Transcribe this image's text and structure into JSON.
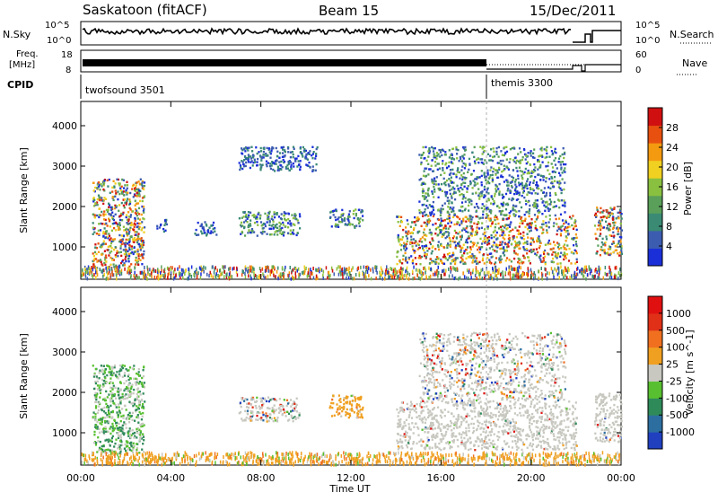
{
  "header": {
    "station": "Saskatoon (fitACF)",
    "beam": "Beam 15",
    "date": "15/Dec/2011"
  },
  "status_panel": {
    "nsky_label": "N.Sky",
    "nsky_ticks": [
      "10^5",
      "10^0"
    ],
    "nsearch_label": "N.Search",
    "nsearch_ticks": [
      "10^5",
      "10^0"
    ],
    "freq_label_1": "Freq.",
    "freq_label_2": "[MHz]",
    "freq_ticks": [
      "18",
      "8"
    ],
    "nave_label": "Nave",
    "nave_ticks": [
      "60",
      "0"
    ],
    "cpid_label": "CPID",
    "programs": [
      {
        "name": "twofsound 3501",
        "start_hour": 0
      },
      {
        "name": "themis 3300",
        "start_hour": 18
      }
    ]
  },
  "chart_data": [
    {
      "type": "heatmap",
      "title": "",
      "ylabel": "Slant Range [km]",
      "y_ticks": [
        "1000",
        "2000",
        "3000",
        "4000"
      ],
      "ylim": [
        200,
        4600
      ],
      "xlim": [
        0,
        24
      ],
      "colorbar": {
        "label": "Power [dB]",
        "ticks": [
          "4",
          "8",
          "12",
          "16",
          "20",
          "24",
          "28"
        ],
        "range": [
          0,
          32
        ],
        "colors": [
          "#1a2fd8",
          "#3c5cb0",
          "#3a8a74",
          "#5aa05a",
          "#8ac040",
          "#f0d020",
          "#f49a10",
          "#e85010",
          "#d01010"
        ]
      },
      "echo_regions": [
        {
          "x": [
            0.5,
            2.8
          ],
          "y": [
            500,
            2700
          ],
          "power": "strong"
        },
        {
          "x": [
            3.3,
            3.8
          ],
          "y": [
            1400,
            1700
          ],
          "power": "weak"
        },
        {
          "x": [
            5.0,
            6.0
          ],
          "y": [
            1300,
            1650
          ],
          "power": "weak"
        },
        {
          "x": [
            7.0,
            9.7
          ],
          "y": [
            1300,
            1900
          ],
          "power": "medium"
        },
        {
          "x": [
            7.0,
            10.5
          ],
          "y": [
            2900,
            3500
          ],
          "power": "weak"
        },
        {
          "x": [
            11.0,
            12.5
          ],
          "y": [
            1500,
            1950
          ],
          "power": "medium"
        },
        {
          "x": [
            14.0,
            22.0
          ],
          "y": [
            600,
            1800
          ],
          "power": "strong"
        },
        {
          "x": [
            15.0,
            21.5
          ],
          "y": [
            1800,
            3500
          ],
          "power": "medium"
        },
        {
          "x": [
            22.8,
            24.0
          ],
          "y": [
            800,
            2000
          ],
          "power": "strong"
        },
        {
          "x": [
            0.0,
            24.0
          ],
          "y": [
            250,
            550
          ],
          "power": "ground"
        }
      ]
    },
    {
      "type": "heatmap",
      "title": "",
      "ylabel": "Slant Range [km]",
      "y_ticks": [
        "1000",
        "2000",
        "3000",
        "4000"
      ],
      "ylim": [
        200,
        4600
      ],
      "xlim": [
        0,
        24
      ],
      "xlabel": "Time UT",
      "x_ticks": [
        "00:00",
        "04:00",
        "08:00",
        "12:00",
        "16:00",
        "20:00",
        "00:00"
      ],
      "colorbar": {
        "label": "Velocity [m s^-1]",
        "ticks": [
          "1000",
          "500",
          "100",
          "25",
          "-25",
          "-100",
          "-500",
          "-1000"
        ],
        "range": [
          -1500,
          1500
        ],
        "colors": [
          "#2040c0",
          "#2c6ea0",
          "#2f8a5a",
          "#58c030",
          "#c8c8c0",
          "#f0a020",
          "#f07020",
          "#e03018",
          "#e01010"
        ]
      },
      "echo_regions": [
        {
          "x": [
            0.5,
            2.8
          ],
          "y": [
            500,
            2700
          ],
          "velocity": "mixed toward"
        },
        {
          "x": [
            7.0,
            9.7
          ],
          "y": [
            1300,
            1900
          ],
          "velocity": "mixed"
        },
        {
          "x": [
            11.0,
            12.5
          ],
          "y": [
            1400,
            1950
          ],
          "velocity": "away"
        },
        {
          "x": [
            14.0,
            22.0
          ],
          "y": [
            600,
            1800
          ],
          "velocity": "ground scatter"
        },
        {
          "x": [
            15.0,
            21.5
          ],
          "y": [
            1800,
            3500
          ],
          "velocity": "mixed"
        },
        {
          "x": [
            22.8,
            24.0
          ],
          "y": [
            800,
            2000
          ],
          "velocity": "ground scatter"
        },
        {
          "x": [
            0.0,
            24.0
          ],
          "y": [
            250,
            550
          ],
          "velocity": "away"
        }
      ]
    }
  ]
}
